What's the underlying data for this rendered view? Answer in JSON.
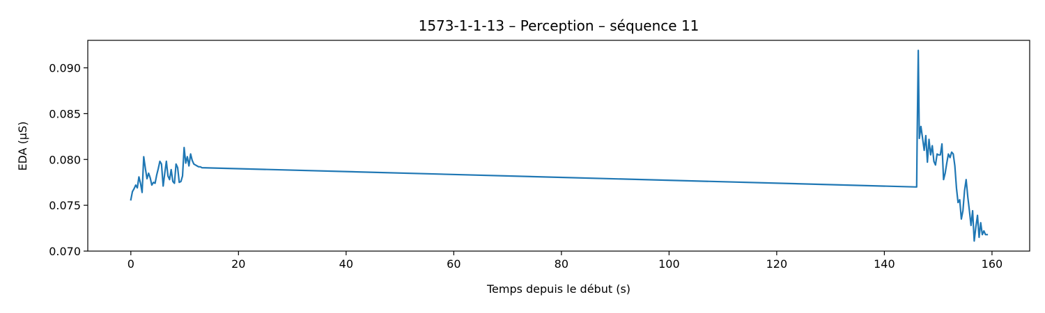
{
  "chart_data": {
    "type": "line",
    "title": "1573-1-1-13 – Perception – séquence 11",
    "xlabel": "Temps depuis le début (s)",
    "ylabel": "EDA (µS)",
    "xlim": [
      -8,
      167
    ],
    "ylim": [
      0.07,
      0.093
    ],
    "xticks": [
      0,
      20,
      40,
      60,
      80,
      100,
      120,
      140,
      160
    ],
    "xtick_labels": [
      "0",
      "20",
      "40",
      "60",
      "80",
      "100",
      "120",
      "140",
      "160"
    ],
    "yticks": [
      0.07,
      0.075,
      0.08,
      0.085,
      0.09
    ],
    "ytick_labels": [
      "0.070",
      "0.075",
      "0.080",
      "0.085",
      "0.090"
    ],
    "grid": false,
    "series": [
      {
        "name": "EDA",
        "color": "#1f77b4",
        "x": [
          0,
          0.3,
          0.6,
          0.9,
          1.2,
          1.5,
          1.8,
          2.1,
          2.4,
          2.7,
          3.0,
          3.3,
          3.6,
          3.9,
          4.2,
          4.5,
          4.8,
          5.1,
          5.4,
          5.7,
          6.0,
          6.3,
          6.6,
          6.9,
          7.2,
          7.5,
          7.8,
          8.1,
          8.4,
          8.7,
          9.0,
          9.3,
          9.6,
          9.9,
          10.2,
          10.5,
          10.8,
          11.1,
          11.4,
          11.7,
          12.0,
          12.3,
          12.6,
          12.9,
          13.2,
          146.0,
          146.1,
          146.3,
          146.5,
          146.8,
          147.1,
          147.4,
          147.7,
          148.0,
          148.3,
          148.6,
          148.9,
          149.2,
          149.5,
          149.8,
          150.1,
          150.4,
          150.7,
          151.0,
          151.3,
          151.6,
          151.9,
          152.2,
          152.5,
          152.8,
          153.1,
          153.4,
          153.7,
          154.0,
          154.3,
          154.6,
          154.9,
          155.2,
          155.5,
          155.8,
          156.1,
          156.4,
          156.7,
          157.0,
          157.3,
          157.6,
          157.9,
          158.2,
          158.5,
          158.8,
          159.1
        ],
        "y": [
          0.0756,
          0.0765,
          0.0768,
          0.0772,
          0.0769,
          0.0781,
          0.0774,
          0.0764,
          0.0803,
          0.079,
          0.0779,
          0.0785,
          0.078,
          0.0772,
          0.0775,
          0.0774,
          0.0783,
          0.079,
          0.0798,
          0.0795,
          0.0771,
          0.0785,
          0.0798,
          0.0782,
          0.0778,
          0.0789,
          0.0776,
          0.0774,
          0.0795,
          0.0791,
          0.0775,
          0.0776,
          0.0782,
          0.0813,
          0.0796,
          0.0803,
          0.0793,
          0.0806,
          0.0799,
          0.0795,
          0.0794,
          0.0793,
          0.0792,
          0.0792,
          0.0791,
          0.077,
          0.0825,
          0.0919,
          0.0823,
          0.0836,
          0.0823,
          0.081,
          0.0826,
          0.0797,
          0.0822,
          0.0805,
          0.0815,
          0.0798,
          0.0794,
          0.0806,
          0.0805,
          0.0805,
          0.0817,
          0.0778,
          0.0785,
          0.0796,
          0.0806,
          0.0802,
          0.0808,
          0.0806,
          0.0793,
          0.0769,
          0.0753,
          0.0756,
          0.0735,
          0.0744,
          0.0766,
          0.0778,
          0.0759,
          0.0744,
          0.0728,
          0.0744,
          0.0711,
          0.0726,
          0.0739,
          0.0715,
          0.0731,
          0.0718,
          0.0722,
          0.0718,
          0.0718
        ]
      }
    ]
  }
}
